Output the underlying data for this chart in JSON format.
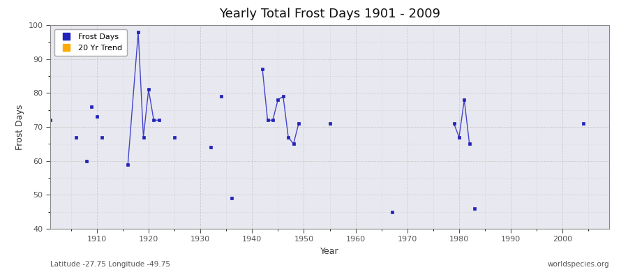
{
  "title": "Yearly Total Frost Days 1901 - 2009",
  "xlabel": "Year",
  "ylabel": "Frost Days",
  "subtitle": "Latitude -27.75 Longitude -49.75",
  "watermark": "worldspecies.org",
  "xlim": [
    1901,
    2009
  ],
  "ylim": [
    40,
    100
  ],
  "yticks": [
    40,
    50,
    60,
    70,
    80,
    90,
    100
  ],
  "xticks": [
    1910,
    1920,
    1930,
    1940,
    1950,
    1960,
    1970,
    1980,
    1990,
    2000
  ],
  "line_color": "#4444cc",
  "marker_color": "#2222bb",
  "plot_bg_color": "#e8e8f0",
  "fig_bg_color": "#ffffff",
  "connected_segments": [
    {
      "years": [
        1916,
        1918,
        1919,
        1920,
        1921,
        1922
      ],
      "values": [
        59,
        98,
        67,
        81,
        72,
        72
      ]
    },
    {
      "years": [
        1942,
        1943,
        1944,
        1945,
        1946,
        1947,
        1948,
        1949
      ],
      "values": [
        87,
        72,
        72,
        78,
        79,
        67,
        65,
        71
      ]
    },
    {
      "years": [
        1979,
        1980,
        1981,
        1982
      ],
      "values": [
        71,
        67,
        78,
        65
      ]
    }
  ],
  "isolated_points": [
    [
      1901,
      72
    ],
    [
      1906,
      67
    ],
    [
      1908,
      60
    ],
    [
      1909,
      76
    ],
    [
      1910,
      73
    ],
    [
      1911,
      67
    ],
    [
      1925,
      67
    ],
    [
      1932,
      64
    ],
    [
      1934,
      79
    ],
    [
      1936,
      49
    ],
    [
      1955,
      71
    ],
    [
      1967,
      45
    ],
    [
      1983,
      46
    ],
    [
      2004,
      71
    ]
  ],
  "legend_items": [
    {
      "label": "Frost Days",
      "color": "#2222bb",
      "marker": "s"
    },
    {
      "label": "20 Yr Trend",
      "color": "#ffaa00",
      "marker": "s"
    }
  ]
}
